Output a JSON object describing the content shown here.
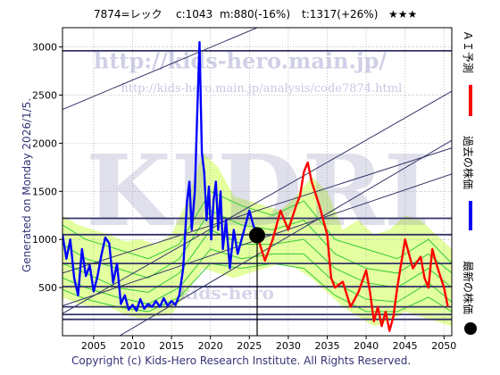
{
  "header": {
    "ticker": "7874=レック",
    "current": "c:1043",
    "mid": "m:880(-16%)",
    "target": "t:1317(+26%)",
    "stars": "★★★"
  },
  "watermark": {
    "url_large": "http://kids-hero.main.jp/",
    "url_small": "http://kids-hero.main.jp/analysis/code7874.html",
    "big_text": "KIDRI",
    "bottom_text": "kids-hero"
  },
  "side_left": "Generated on Monday 2026/1/5.",
  "legend": [
    {
      "label": "ＡＩ予測",
      "color": "#ff0000",
      "type": "line"
    },
    {
      "label": "過去の株価",
      "color": "#0000ff",
      "type": "line"
    },
    {
      "label": "最新の株価",
      "color": "#000000",
      "type": "dot"
    }
  ],
  "footer": "Copyright (c) Kids-Hero Research Institute. All Rights Reserved.",
  "colors": {
    "past": "#0000ff",
    "forecast": "#ff0000",
    "band_green": "#33cc33",
    "band_fill": "#ccff99",
    "band_yellow": "#ffff99",
    "grid": "#999999",
    "hline": "#333366"
  },
  "chart_data": {
    "type": "line",
    "xlim": [
      2001,
      2051
    ],
    "ylim": [
      0,
      3200
    ],
    "xticks": [
      2005,
      2010,
      2015,
      2020,
      2025,
      2030,
      2035,
      2040,
      2045,
      2050
    ],
    "yticks": [
      500,
      1000,
      1500,
      2000,
      2500,
      3000
    ],
    "hlines": [
      2960,
      1220,
      1050,
      750,
      510,
      300,
      220,
      170
    ],
    "trendlines": [
      {
        "x": [
          2001,
          2026
        ],
        "y": [
          2350,
          3200
        ]
      },
      {
        "x": [
          2001,
          2051
        ],
        "y": [
          -350,
          2030
        ]
      },
      {
        "x": [
          2001,
          2051
        ],
        "y": [
          230,
          2540
        ]
      },
      {
        "x": [
          2001,
          2051
        ],
        "y": [
          650,
          1950
        ]
      },
      {
        "x": [
          2001,
          2051
        ],
        "y": [
          310,
          1680
        ]
      }
    ],
    "latest": {
      "x": 2026,
      "y": 1043
    },
    "series": [
      {
        "name": "過去の株価",
        "x": [
          2001.0,
          2001.5,
          2002.0,
          2002.5,
          2003.0,
          2003.5,
          2004.0,
          2004.5,
          2005.0,
          2005.5,
          2006.0,
          2006.5,
          2007.0,
          2007.5,
          2008.0,
          2008.5,
          2009.0,
          2009.5,
          2010.0,
          2010.5,
          2011.0,
          2011.5,
          2012.0,
          2012.5,
          2013.0,
          2013.5,
          2014.0,
          2014.5,
          2015.0,
          2015.5,
          2016.0,
          2016.5,
          2017.0,
          2017.3,
          2017.6,
          2018.0,
          2018.3,
          2018.6,
          2018.9,
          2019.2,
          2019.5,
          2019.8,
          2020.1,
          2020.4,
          2020.7,
          2021.0,
          2021.3,
          2021.6,
          2022.0,
          2022.5,
          2023.0,
          2023.5,
          2024.0,
          2024.5,
          2025.0,
          2025.5,
          2026.0
        ],
        "y": [
          1050,
          800,
          1000,
          600,
          420,
          900,
          620,
          730,
          460,
          620,
          840,
          1020,
          960,
          550,
          750,
          330,
          420,
          270,
          320,
          260,
          380,
          280,
          330,
          300,
          360,
          300,
          390,
          310,
          360,
          320,
          420,
          700,
          1400,
          1600,
          1100,
          1500,
          2300,
          3050,
          1900,
          1700,
          1200,
          1550,
          1000,
          1400,
          1600,
          1100,
          1500,
          900,
          1200,
          700,
          1100,
          850,
          1000,
          1150,
          1300,
          1150,
          1043
        ]
      },
      {
        "name": "ＡＩ予測",
        "x": [
          2026,
          2027,
          2028,
          2029,
          2030,
          2031,
          2031.5,
          2032,
          2032.5,
          2033,
          2034,
          2035,
          2035.5,
          2036,
          2037,
          2038,
          2039,
          2040,
          2040.5,
          2041,
          2041.5,
          2042,
          2042.5,
          2043,
          2043.5,
          2044,
          2045,
          2046,
          2047,
          2047.5,
          2048,
          2048.5,
          2049,
          2050,
          2050.5
        ],
        "y": [
          1043,
          780,
          1000,
          1300,
          1100,
          1350,
          1450,
          1700,
          1800,
          1600,
          1350,
          1050,
          600,
          500,
          560,
          300,
          450,
          680,
          450,
          150,
          300,
          100,
          250,
          50,
          200,
          500,
          1000,
          700,
          820,
          600,
          500,
          900,
          750,
          500,
          300
        ]
      }
    ],
    "bands": [
      {
        "x": [
          2001,
          2003,
          2005,
          2007,
          2009,
          2011,
          2013,
          2015,
          2017,
          2019,
          2021,
          2023,
          2025,
          2027,
          2029,
          2031,
          2033,
          2035,
          2037,
          2039,
          2041,
          2043,
          2045,
          2047,
          2049,
          2051
        ],
        "y": [
          1250,
          1150,
          1100,
          1050,
          980,
          1000,
          950,
          1050,
          1400,
          1900,
          1750,
          1450,
          1400,
          1350,
          1300,
          1450,
          1650,
          1500,
          1100,
          1200,
          1050,
          1100,
          1250,
          1200,
          1050,
          900
        ]
      },
      {
        "x": [
          2001,
          2003,
          2005,
          2007,
          2009,
          2011,
          2013,
          2015,
          2017,
          2019,
          2021,
          2023,
          2025,
          2027,
          2029,
          2031,
          2033,
          2035,
          2037,
          2039,
          2041,
          2043,
          2045,
          2047,
          2049,
          2051
        ],
        "y": [
          400,
          330,
          300,
          300,
          220,
          180,
          200,
          220,
          450,
          700,
          650,
          600,
          650,
          700,
          750,
          700,
          600,
          450,
          300,
          200,
          100,
          150,
          250,
          200,
          150,
          100
        ]
      }
    ],
    "green_lines": [
      {
        "x": [
          2001,
          2004,
          2008,
          2012,
          2016,
          2020,
          2024,
          2028,
          2032,
          2036,
          2040,
          2044,
          2048,
          2051
        ],
        "y": [
          1150,
          1000,
          900,
          800,
          950,
          1500,
          1350,
          1250,
          1400,
          1000,
          900,
          800,
          1000,
          750
        ]
      },
      {
        "x": [
          2001,
          2004,
          2008,
          2012,
          2016,
          2020,
          2024,
          2028,
          2032,
          2036,
          2040,
          2044,
          2048,
          2051
        ],
        "y": [
          950,
          800,
          700,
          600,
          800,
          1300,
          1150,
          1100,
          1200,
          850,
          700,
          650,
          850,
          650
        ]
      },
      {
        "x": [
          2001,
          2004,
          2008,
          2012,
          2016,
          2020,
          2024,
          2028,
          2032,
          2036,
          2040,
          2044,
          2048,
          2051
        ],
        "y": [
          750,
          650,
          500,
          450,
          650,
          1100,
          950,
          950,
          1000,
          700,
          550,
          500,
          700,
          500
        ]
      },
      {
        "x": [
          2001,
          2004,
          2008,
          2012,
          2016,
          2020,
          2024,
          2028,
          2032,
          2036,
          2040,
          2044,
          2048,
          2051
        ],
        "y": [
          600,
          500,
          400,
          330,
          500,
          900,
          800,
          850,
          850,
          550,
          380,
          350,
          550,
          350
        ]
      },
      {
        "x": [
          2001,
          2004,
          2008,
          2012,
          2016,
          2020,
          2024,
          2028,
          2032,
          2036,
          2040,
          2044,
          2048,
          2051
        ],
        "y": [
          480,
          380,
          300,
          250,
          400,
          750,
          700,
          750,
          700,
          420,
          250,
          250,
          400,
          250
        ]
      }
    ]
  }
}
